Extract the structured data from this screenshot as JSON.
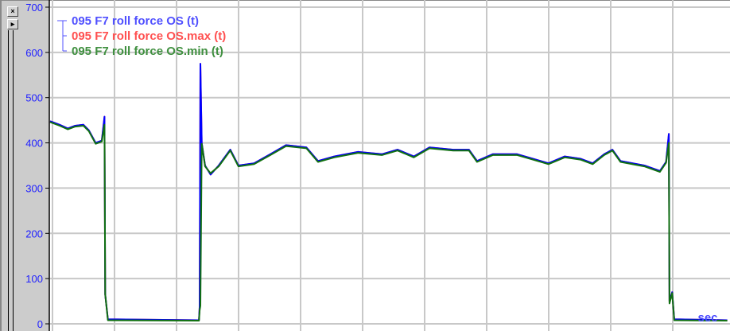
{
  "panel": {
    "close_icon": "×",
    "expand_icon": "▸"
  },
  "chart_data": {
    "type": "line",
    "xlabel": "sec",
    "ylabel": "",
    "ylim": [
      0,
      700
    ],
    "xlim": [
      0,
      100
    ],
    "yticks": [
      "0",
      "100",
      "200",
      "300",
      "400",
      "500",
      "600",
      "700"
    ],
    "grid": true,
    "legend_placement": "top-left",
    "colors": {
      "axis_labels": "#2020ff",
      "grid": "#c8c8c8"
    },
    "series": [
      {
        "name": "095 F7 roll force OS (t)",
        "color": "#0000ff",
        "legend_color": "#5050ff",
        "points": [
          [
            0,
            448
          ],
          [
            1.4,
            440
          ],
          [
            2.6,
            432
          ],
          [
            3.7,
            438
          ],
          [
            4.9,
            440
          ],
          [
            5.7,
            428
          ],
          [
            6.7,
            400
          ],
          [
            7.6,
            405
          ],
          [
            8.0,
            458
          ],
          [
            8.1,
            65
          ],
          [
            8.5,
            10
          ],
          [
            21.9,
            8
          ],
          [
            22.0,
            40
          ],
          [
            22.1,
            575
          ],
          [
            22.3,
            400
          ],
          [
            22.8,
            350
          ],
          [
            23.6,
            330
          ],
          [
            24.8,
            350
          ],
          [
            26.5,
            385
          ],
          [
            27.7,
            350
          ],
          [
            30.0,
            355
          ],
          [
            32.4,
            375
          ],
          [
            34.7,
            395
          ],
          [
            37.7,
            390
          ],
          [
            39.4,
            360
          ],
          [
            41.8,
            370
          ],
          [
            45.3,
            380
          ],
          [
            48.8,
            375
          ],
          [
            51.1,
            385
          ],
          [
            53.5,
            370
          ],
          [
            55.8,
            390
          ],
          [
            59.3,
            385
          ],
          [
            61.6,
            385
          ],
          [
            62.8,
            360
          ],
          [
            65.1,
            375
          ],
          [
            68.7,
            375
          ],
          [
            71.0,
            365
          ],
          [
            73.3,
            355
          ],
          [
            75.7,
            370
          ],
          [
            78.0,
            365
          ],
          [
            79.8,
            355
          ],
          [
            81.5,
            375
          ],
          [
            82.7,
            385
          ],
          [
            83.9,
            360
          ],
          [
            87.4,
            350
          ],
          [
            89.7,
            338
          ],
          [
            90.6,
            358
          ],
          [
            91.0,
            420
          ],
          [
            91.1,
            50
          ],
          [
            91.5,
            70
          ],
          [
            91.8,
            10
          ],
          [
            99.6,
            8
          ]
        ]
      },
      {
        "name": "095 F7 roll force OS.max (t)",
        "color": "#ff4040",
        "legend_color": "#ff5050",
        "points": [
          [
            0,
            448
          ],
          [
            1.4,
            440
          ],
          [
            2.6,
            432
          ],
          [
            3.7,
            438
          ],
          [
            4.9,
            440
          ],
          [
            5.7,
            428
          ],
          [
            6.7,
            400
          ],
          [
            7.6,
            405
          ],
          [
            8.0,
            458
          ],
          [
            8.1,
            65
          ],
          [
            8.5,
            10
          ],
          [
            21.9,
            8
          ],
          [
            22.0,
            40
          ],
          [
            22.1,
            575
          ],
          [
            22.3,
            400
          ],
          [
            22.8,
            350
          ],
          [
            23.6,
            330
          ],
          [
            24.8,
            350
          ],
          [
            26.5,
            385
          ],
          [
            27.7,
            350
          ],
          [
            30.0,
            355
          ],
          [
            32.4,
            375
          ],
          [
            34.7,
            395
          ],
          [
            37.7,
            390
          ],
          [
            39.4,
            360
          ],
          [
            41.8,
            370
          ],
          [
            45.3,
            380
          ],
          [
            48.8,
            375
          ],
          [
            51.1,
            385
          ],
          [
            53.5,
            370
          ],
          [
            55.8,
            390
          ],
          [
            59.3,
            385
          ],
          [
            61.6,
            385
          ],
          [
            62.8,
            360
          ],
          [
            65.1,
            375
          ],
          [
            68.7,
            375
          ],
          [
            71.0,
            365
          ],
          [
            73.3,
            355
          ],
          [
            75.7,
            370
          ],
          [
            78.0,
            365
          ],
          [
            79.8,
            355
          ],
          [
            81.5,
            375
          ],
          [
            82.7,
            385
          ],
          [
            83.9,
            360
          ],
          [
            87.4,
            350
          ],
          [
            89.7,
            338
          ],
          [
            90.6,
            358
          ],
          [
            91.0,
            420
          ],
          [
            91.1,
            50
          ],
          [
            91.5,
            70
          ],
          [
            91.8,
            10
          ],
          [
            99.6,
            8
          ]
        ]
      },
      {
        "name": "095 F7 roll force OS.min (t)",
        "color": "#107010",
        "legend_color": "#409040",
        "points": [
          [
            0,
            446
          ],
          [
            1.4,
            438
          ],
          [
            2.6,
            430
          ],
          [
            3.7,
            436
          ],
          [
            4.9,
            438
          ],
          [
            5.7,
            426
          ],
          [
            6.7,
            398
          ],
          [
            7.6,
            403
          ],
          [
            8.0,
            440
          ],
          [
            8.1,
            65
          ],
          [
            8.5,
            8
          ],
          [
            21.9,
            7
          ],
          [
            22.0,
            30
          ],
          [
            22.1,
            40
          ],
          [
            22.3,
            398
          ],
          [
            22.8,
            348
          ],
          [
            23.6,
            333
          ],
          [
            24.8,
            348
          ],
          [
            26.5,
            383
          ],
          [
            27.7,
            348
          ],
          [
            30.0,
            353
          ],
          [
            32.4,
            373
          ],
          [
            34.7,
            393
          ],
          [
            37.7,
            388
          ],
          [
            39.4,
            358
          ],
          [
            41.8,
            368
          ],
          [
            45.3,
            378
          ],
          [
            48.8,
            373
          ],
          [
            51.1,
            383
          ],
          [
            53.5,
            368
          ],
          [
            55.8,
            388
          ],
          [
            59.3,
            383
          ],
          [
            61.6,
            383
          ],
          [
            62.8,
            358
          ],
          [
            65.1,
            373
          ],
          [
            68.7,
            373
          ],
          [
            71.0,
            363
          ],
          [
            73.3,
            353
          ],
          [
            75.7,
            368
          ],
          [
            78.0,
            363
          ],
          [
            79.8,
            353
          ],
          [
            81.5,
            373
          ],
          [
            82.7,
            383
          ],
          [
            83.9,
            358
          ],
          [
            87.4,
            348
          ],
          [
            89.7,
            336
          ],
          [
            90.6,
            356
          ],
          [
            91.0,
            400
          ],
          [
            91.1,
            45
          ],
          [
            91.5,
            68
          ],
          [
            91.8,
            8
          ],
          [
            99.6,
            7
          ]
        ]
      }
    ]
  }
}
